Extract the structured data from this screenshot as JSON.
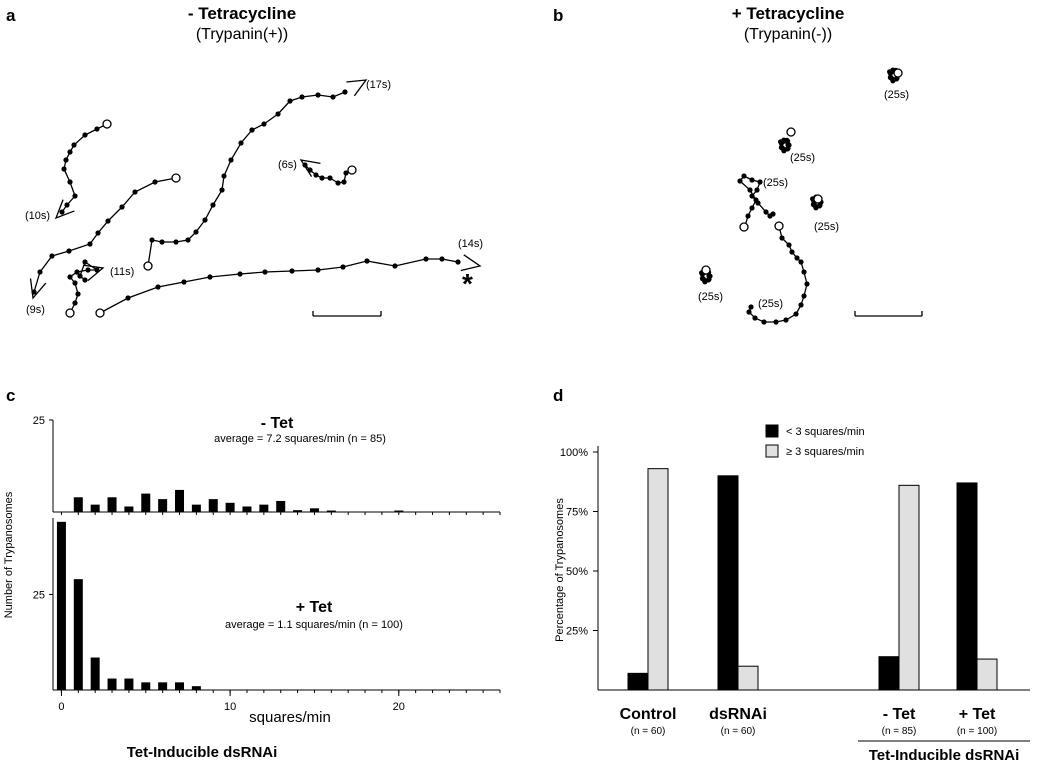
{
  "panels": {
    "a": {
      "letter": "a",
      "title": "- Tetracycline",
      "subtitle": "(Trypanin(+))",
      "track_labels": [
        "(10s)",
        "(9s)",
        "(11s)",
        "(17s)",
        "(6s)",
        "(14s)"
      ],
      "star": "*"
    },
    "b": {
      "letter": "b",
      "title": "+ Tetracycline",
      "subtitle": "(Trypanin(-))",
      "track_labels": [
        "(25s)",
        "(25s)",
        "(25s)",
        "(25s)",
        "(25s)",
        "(25s)"
      ]
    },
    "c": {
      "letter": "c"
    },
    "d": {
      "letter": "d"
    }
  },
  "chart_data": [
    {
      "type": "bar",
      "title": "- Tet",
      "subtitle": "average = 7.2 squares/min (n = 85)",
      "x": [
        1,
        2,
        3,
        4,
        5,
        6,
        7,
        8,
        9,
        10,
        11,
        12,
        13,
        14,
        15,
        16,
        20
      ],
      "values": [
        4,
        2,
        4,
        1.5,
        5,
        3.5,
        6,
        2,
        3.5,
        2.5,
        1.5,
        2,
        3,
        0.5,
        1,
        0.4,
        0.4
      ],
      "xlim": [
        -0.5,
        26
      ],
      "ylim": [
        0,
        25
      ],
      "yticks": [
        25
      ],
      "xlabel": "",
      "ylabel": ""
    },
    {
      "type": "bar",
      "title": "+ Tet",
      "subtitle": "average = 1.1 squares/min (n = 100)",
      "x": [
        0,
        1,
        2,
        3,
        4,
        5,
        6,
        7,
        8
      ],
      "values": [
        44,
        29,
        8.5,
        3,
        3,
        2,
        2,
        2,
        1
      ],
      "xlim": [
        -0.5,
        26
      ],
      "xticks": [
        0,
        10,
        20
      ],
      "ylim": [
        0,
        45
      ],
      "yticks": [
        25
      ],
      "xlabel": "squares/min",
      "ylabel": "Number of Trypanosomes",
      "footer": "Tet-Inducible dsRNAi"
    },
    {
      "type": "bar",
      "categories": [
        "Control",
        "dsRNAi",
        "- Tet",
        "+ Tet"
      ],
      "category_notes": [
        "(n = 60)",
        "(n = 60)",
        "(n = 85)",
        "(n = 100)"
      ],
      "series": [
        {
          "name": "< 3 squares/min",
          "values": [
            7,
            90,
            14,
            87
          ],
          "color": "#000000"
        },
        {
          "name": "≥ 3 squares/min",
          "values": [
            93,
            10,
            86,
            13
          ],
          "color": "#e0e0e0"
        }
      ],
      "ylim": [
        0,
        100
      ],
      "yticks": [
        "25%",
        "50%",
        "75%",
        "100%"
      ],
      "ylabel": "Percentage of Trypanosomes",
      "legend": "top-center",
      "footer": "Tet-Inducible dsRNAi"
    }
  ]
}
